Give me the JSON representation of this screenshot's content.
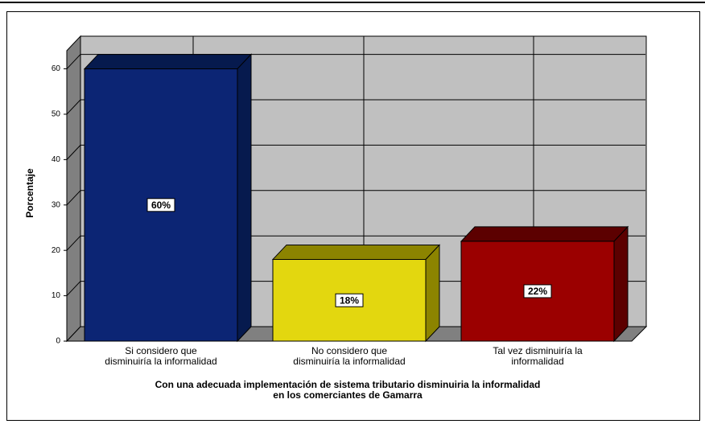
{
  "chart_data": {
    "type": "bar3d",
    "x_label": "Con una adecuada implementación de sistema tributario disminuiria la informalidad\nen los comerciantes de Gamarra",
    "y_label": "Porcentaje",
    "categories": [
      "Si considero que\ndisminuiría la informalidad",
      "No considero que\ndisminuiría la informalidad",
      "Tal vez disminuiría la\ninformalidad"
    ],
    "values": [
      60,
      18,
      22
    ],
    "value_labels": [
      "60%",
      "18%",
      "22%"
    ],
    "colors": [
      "#0c2574",
      "#e3d70f",
      "#9b0000"
    ],
    "side_colors": [
      "#061a4e",
      "#8c8400",
      "#5c0000"
    ],
    "ylim": [
      0,
      64
    ],
    "yticks": [
      0,
      10,
      20,
      30,
      40,
      50,
      60
    ],
    "grid": true
  }
}
